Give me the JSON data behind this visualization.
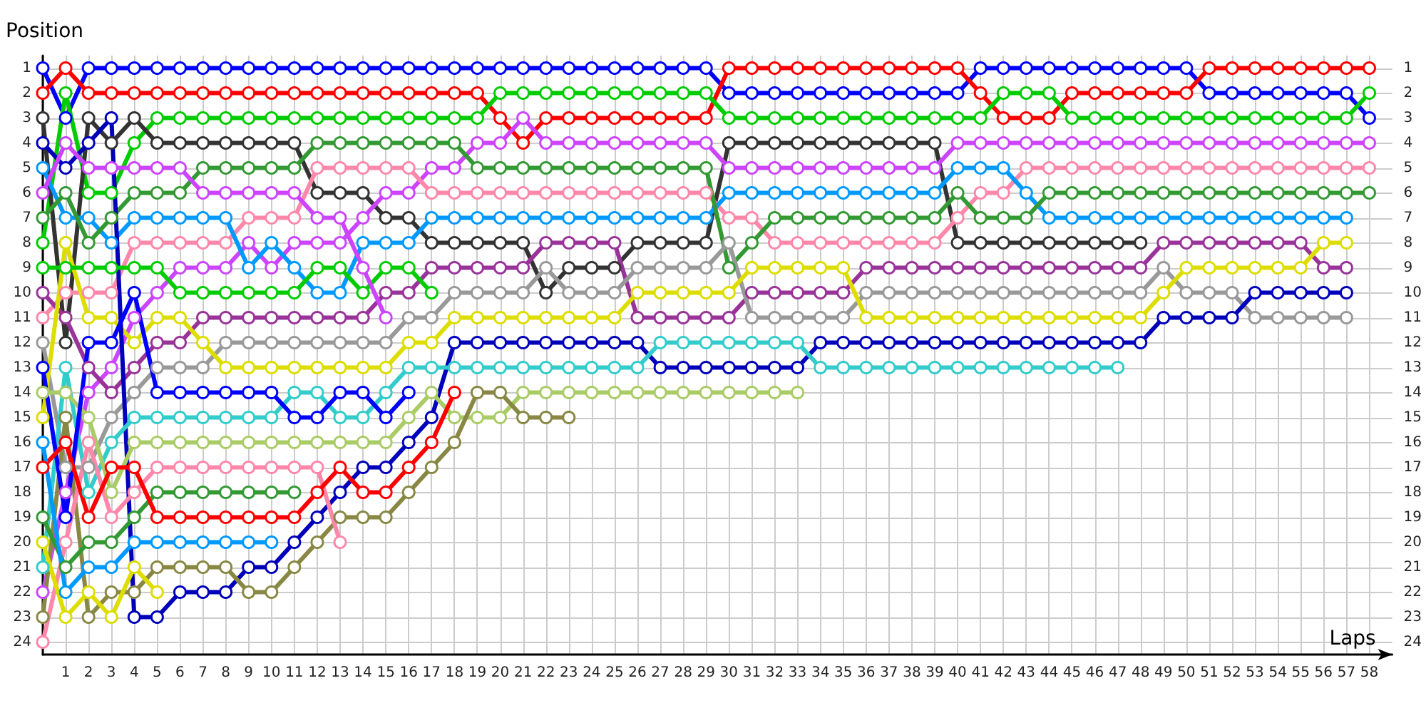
{
  "chart_data": {
    "type": "line",
    "xlabel": "Laps",
    "ylabel": "Position",
    "x": [
      0,
      1,
      2,
      3,
      4,
      5,
      6,
      7,
      8,
      9,
      10,
      11,
      12,
      13,
      14,
      15,
      16,
      17,
      18,
      19,
      20,
      21,
      22,
      23,
      24,
      25,
      26,
      27,
      28,
      29,
      30,
      31,
      32,
      33,
      34,
      35,
      36,
      37,
      38,
      39,
      40,
      41,
      42,
      43,
      44,
      45,
      46,
      47,
      48,
      49,
      50,
      51,
      52,
      53,
      54,
      55,
      56,
      57,
      58
    ],
    "xlim": [
      0,
      59
    ],
    "xticks": [
      {
        "value": 0,
        "label": null
      },
      1,
      2,
      3,
      4,
      5,
      6,
      7,
      8,
      9,
      10,
      11,
      12,
      13,
      14,
      15,
      16,
      17,
      18,
      19,
      20,
      21,
      22,
      23,
      24,
      25,
      26,
      27,
      28,
      29,
      30,
      31,
      32,
      33,
      34,
      35,
      36,
      37,
      38,
      39,
      40,
      41,
      42,
      43,
      44,
      45,
      46,
      47,
      48,
      49,
      50,
      51,
      52,
      53,
      54,
      55,
      56,
      57,
      58
    ],
    "ylim": [
      24.5,
      0.5
    ],
    "yticks": [
      1,
      2,
      3,
      4,
      5,
      6,
      7,
      8,
      9,
      10,
      11,
      12,
      13,
      14,
      15,
      16,
      17,
      18,
      19,
      20,
      21,
      22,
      23,
      24
    ],
    "y2lim": [
      24.5,
      0.5
    ],
    "y2ticks": [
      1,
      2,
      3,
      4,
      5,
      6,
      7,
      8,
      9,
      10,
      11,
      12,
      13,
      14,
      15,
      16,
      17,
      18,
      19,
      20,
      21,
      22,
      23,
      24
    ],
    "grid": true,
    "marker": "circle",
    "line_style": "solid",
    "series": [
      {
        "color": "#0000ff",
        "values": [
          1,
          3,
          1,
          1,
          1,
          1,
          1,
          1,
          1,
          1,
          1,
          1,
          1,
          1,
          1,
          1,
          1,
          1,
          1,
          1,
          1,
          1,
          1,
          1,
          1,
          1,
          1,
          1,
          1,
          1,
          2,
          2,
          2,
          2,
          2,
          2,
          2,
          2,
          2,
          2,
          2,
          1,
          1,
          1,
          1,
          1,
          1,
          1,
          1,
          1,
          1,
          2,
          2,
          2,
          2,
          2,
          2,
          2,
          3
        ]
      },
      {
        "color": "#ff0000",
        "values": [
          2,
          1,
          2,
          2,
          2,
          2,
          2,
          2,
          2,
          2,
          2,
          2,
          2,
          2,
          2,
          2,
          2,
          2,
          2,
          2,
          3,
          4,
          3,
          3,
          3,
          3,
          3,
          3,
          3,
          3,
          1,
          1,
          1,
          1,
          1,
          1,
          1,
          1,
          1,
          1,
          1,
          2,
          3,
          3,
          3,
          2,
          2,
          2,
          2,
          2,
          2,
          1,
          1,
          1,
          1,
          1,
          1,
          1,
          1
        ]
      },
      {
        "color": "#00cc00",
        "values": [
          8,
          2,
          6,
          6,
          4,
          3,
          3,
          3,
          3,
          3,
          3,
          3,
          3,
          3,
          3,
          3,
          3,
          3,
          3,
          3,
          2,
          2,
          2,
          2,
          2,
          2,
          2,
          2,
          2,
          2,
          3,
          3,
          3,
          3,
          3,
          3,
          3,
          3,
          3,
          3,
          3,
          3,
          2,
          2,
          2,
          3,
          3,
          3,
          3,
          3,
          3,
          3,
          3,
          3,
          3,
          3,
          3,
          3,
          2
        ]
      },
      {
        "color": "#333333",
        "values": [
          3,
          12,
          3,
          4,
          3,
          4,
          4,
          4,
          4,
          4,
          4,
          4,
          6,
          6,
          6,
          7,
          7,
          8,
          8,
          8,
          8,
          8,
          10,
          9,
          9,
          9,
          8,
          8,
          8,
          8,
          4,
          4,
          4,
          4,
          4,
          4,
          4,
          4,
          4,
          4,
          8,
          8,
          8,
          8,
          8,
          8,
          8,
          8,
          8,
          null,
          null,
          null,
          null,
          null,
          null,
          null,
          null,
          null,
          null
        ]
      },
      {
        "color": "#cc44ff",
        "values": [
          22,
          18,
          14,
          13,
          11,
          10,
          9,
          9,
          9,
          8,
          9,
          8,
          8,
          8,
          7,
          6,
          6,
          5,
          5,
          4,
          4,
          3,
          4,
          4,
          4,
          4,
          4,
          4,
          4,
          4,
          5,
          5,
          5,
          5,
          5,
          5,
          5,
          5,
          5,
          5,
          4,
          4,
          4,
          4,
          4,
          4,
          4,
          4,
          4,
          4,
          4,
          4,
          4,
          4,
          4,
          4,
          4,
          4,
          4
        ]
      },
      {
        "color": "#ff88aa",
        "values": [
          11,
          10,
          10,
          10,
          8,
          8,
          8,
          8,
          8,
          7,
          7,
          7,
          5,
          5,
          5,
          5,
          5,
          6,
          6,
          6,
          6,
          6,
          6,
          6,
          6,
          6,
          6,
          6,
          6,
          6,
          7,
          7,
          8,
          8,
          8,
          8,
          8,
          8,
          8,
          8,
          7,
          6,
          6,
          5,
          5,
          5,
          5,
          5,
          5,
          5,
          5,
          5,
          5,
          5,
          5,
          5,
          5,
          5,
          5
        ]
      },
      {
        "color": "#0099ff",
        "values": [
          5,
          7,
          7,
          8,
          7,
          7,
          7,
          7,
          7,
          9,
          8,
          9,
          10,
          10,
          8,
          8,
          8,
          7,
          7,
          7,
          7,
          7,
          7,
          7,
          7,
          7,
          7,
          7,
          7,
          7,
          6,
          6,
          6,
          6,
          6,
          6,
          6,
          6,
          6,
          6,
          5,
          5,
          5,
          6,
          7,
          7,
          7,
          7,
          7,
          7,
          7,
          7,
          7,
          7,
          7,
          7,
          7,
          7,
          null
        ]
      },
      {
        "color": "#339933",
        "values": [
          7,
          6,
          8,
          7,
          6,
          6,
          6,
          5,
          5,
          5,
          5,
          5,
          4,
          4,
          4,
          4,
          4,
          4,
          4,
          5,
          5,
          5,
          5,
          5,
          5,
          5,
          5,
          5,
          5,
          5,
          9,
          8,
          7,
          7,
          7,
          7,
          7,
          7,
          7,
          7,
          6,
          7,
          7,
          7,
          6,
          6,
          6,
          6,
          6,
          6,
          6,
          6,
          6,
          6,
          6,
          6,
          6,
          6,
          6
        ]
      },
      {
        "color": "#993399",
        "values": [
          10,
          11,
          13,
          14,
          13,
          12,
          12,
          11,
          11,
          11,
          11,
          11,
          11,
          11,
          11,
          10,
          10,
          9,
          9,
          9,
          9,
          9,
          8,
          8,
          8,
          8,
          11,
          11,
          11,
          11,
          11,
          10,
          10,
          10,
          10,
          10,
          9,
          9,
          9,
          9,
          9,
          9,
          9,
          9,
          9,
          9,
          9,
          9,
          9,
          8,
          8,
          8,
          8,
          8,
          8,
          8,
          9,
          9,
          null
        ]
      },
      {
        "color": "#999999",
        "values": [
          12,
          17,
          17,
          15,
          14,
          13,
          13,
          13,
          12,
          12,
          12,
          12,
          12,
          12,
          12,
          12,
          11,
          11,
          10,
          10,
          10,
          10,
          9,
          10,
          10,
          10,
          9,
          9,
          9,
          9,
          8,
          11,
          11,
          11,
          11,
          11,
          10,
          10,
          10,
          10,
          10,
          10,
          10,
          10,
          10,
          10,
          10,
          10,
          10,
          9,
          10,
          10,
          10,
          11,
          11,
          11,
          11,
          11,
          null
        ]
      },
      {
        "color": "#dddd00",
        "values": [
          15,
          8,
          11,
          11,
          12,
          11,
          11,
          12,
          13,
          13,
          13,
          13,
          13,
          13,
          13,
          13,
          12,
          12,
          11,
          11,
          11,
          11,
          11,
          11,
          11,
          11,
          10,
          10,
          10,
          10,
          10,
          9,
          9,
          9,
          9,
          9,
          11,
          11,
          11,
          11,
          11,
          11,
          11,
          11,
          11,
          11,
          11,
          11,
          11,
          10,
          9,
          9,
          9,
          9,
          9,
          9,
          8,
          8,
          null
        ]
      },
      {
        "color": "#0000bb",
        "values": [
          4,
          5,
          4,
          3,
          23,
          23,
          22,
          22,
          22,
          21,
          21,
          20,
          19,
          18,
          17,
          17,
          16,
          15,
          12,
          12,
          12,
          12,
          12,
          12,
          12,
          12,
          12,
          13,
          13,
          13,
          13,
          13,
          13,
          13,
          12,
          12,
          12,
          12,
          12,
          12,
          12,
          12,
          12,
          12,
          12,
          12,
          12,
          12,
          12,
          11,
          11,
          11,
          11,
          10,
          10,
          10,
          10,
          10,
          null
        ]
      },
      {
        "color": "#33cccc",
        "values": [
          21,
          13,
          18,
          16,
          15,
          15,
          15,
          15,
          15,
          15,
          15,
          14,
          14,
          15,
          15,
          14,
          13,
          13,
          13,
          13,
          13,
          13,
          13,
          13,
          13,
          13,
          13,
          12,
          12,
          12,
          12,
          12,
          12,
          12,
          13,
          13,
          13,
          13,
          13,
          13,
          13,
          13,
          13,
          13,
          13,
          13,
          13,
          13,
          null,
          null,
          null,
          null,
          null,
          null,
          null,
          null,
          null,
          null,
          null
        ]
      },
      {
        "color": "#aacc66",
        "values": [
          14,
          14,
          15,
          18,
          16,
          16,
          16,
          16,
          16,
          16,
          16,
          16,
          16,
          16,
          16,
          16,
          15,
          14,
          15,
          15,
          15,
          14,
          14,
          14,
          14,
          14,
          14,
          14,
          14,
          14,
          14,
          14,
          14,
          14,
          null,
          null,
          null,
          null,
          null,
          null,
          null,
          null,
          null,
          null,
          null,
          null,
          null,
          null,
          null,
          null,
          null,
          null,
          null,
          null,
          null,
          null,
          null,
          null,
          null
        ]
      },
      {
        "color": "#888844",
        "values": [
          23,
          15,
          23,
          22,
          22,
          21,
          21,
          21,
          21,
          22,
          22,
          21,
          20,
          19,
          19,
          19,
          18,
          17,
          16,
          14,
          14,
          15,
          15,
          15,
          null,
          null,
          null,
          null,
          null,
          null,
          null,
          null,
          null,
          null,
          null,
          null,
          null,
          null,
          null,
          null,
          null,
          null,
          null,
          null,
          null,
          null,
          null,
          null,
          null,
          null,
          null,
          null,
          null,
          null,
          null,
          null,
          null,
          null,
          null
        ]
      },
      {
        "color": "#00cc00",
        "values": [
          9,
          9,
          9,
          9,
          9,
          9,
          10,
          10,
          10,
          10,
          10,
          10,
          9,
          9,
          10,
          9,
          9,
          10,
          null,
          null,
          null,
          null,
          null,
          null,
          null,
          null,
          null,
          null,
          null,
          null,
          null,
          null,
          null,
          null,
          null,
          null,
          null,
          null,
          null,
          null,
          null,
          null,
          null,
          null,
          null,
          null,
          null,
          null,
          null,
          null,
          null,
          null,
          null,
          null,
          null,
          null,
          null,
          null,
          null
        ]
      },
      {
        "color": "#cc44ff",
        "values": [
          6,
          4,
          5,
          5,
          5,
          5,
          5,
          6,
          6,
          6,
          6,
          6,
          7,
          7,
          9,
          11,
          null,
          null,
          null,
          null,
          null,
          null,
          null,
          null,
          null,
          null,
          null,
          null,
          null,
          null,
          null,
          null,
          null,
          null,
          null,
          null,
          null,
          null,
          null,
          null,
          null,
          null,
          null,
          null,
          null,
          null,
          null,
          null,
          null,
          null,
          null,
          null,
          null,
          null,
          null,
          null,
          null,
          null,
          null
        ]
      },
      {
        "color": "#0000ff",
        "values": [
          13,
          19,
          12,
          12,
          10,
          14,
          14,
          14,
          14,
          14,
          14,
          15,
          15,
          14,
          14,
          15,
          14,
          null,
          null,
          null,
          null,
          null,
          null,
          null,
          null,
          null,
          null,
          null,
          null,
          null,
          null,
          null,
          null,
          null,
          null,
          null,
          null,
          null,
          null,
          null,
          null,
          null,
          null,
          null,
          null,
          null,
          null,
          null,
          null,
          null,
          null,
          null,
          null,
          null,
          null,
          null,
          null,
          null,
          null
        ]
      },
      {
        "color": "#ff88aa",
        "values": [
          24,
          20,
          16,
          19,
          18,
          17,
          17,
          17,
          17,
          17,
          17,
          17,
          17,
          20,
          null,
          null,
          null,
          null,
          null,
          null,
          null,
          null,
          null,
          null,
          null,
          null,
          null,
          null,
          null,
          null,
          null,
          null,
          null,
          null,
          null,
          null,
          null,
          null,
          null,
          null,
          null,
          null,
          null,
          null,
          null,
          null,
          null,
          null,
          null,
          null,
          null,
          null,
          null,
          null,
          null,
          null,
          null,
          null,
          null
        ]
      },
      {
        "color": "#339933",
        "values": [
          19,
          21,
          20,
          20,
          19,
          18,
          18,
          18,
          18,
          18,
          18,
          18,
          null,
          null,
          null,
          null,
          null,
          null,
          null,
          null,
          null,
          null,
          null,
          null,
          null,
          null,
          null,
          null,
          null,
          null,
          null,
          null,
          null,
          null,
          null,
          null,
          null,
          null,
          null,
          null,
          null,
          null,
          null,
          null,
          null,
          null,
          null,
          null,
          null,
          null,
          null,
          null,
          null,
          null,
          null,
          null,
          null,
          null,
          null
        ]
      },
      {
        "color": "#ff0000",
        "values": [
          17,
          16,
          19,
          17,
          17,
          19,
          19,
          19,
          19,
          19,
          19,
          19,
          18,
          17,
          18,
          18,
          17,
          16,
          14,
          null,
          null,
          null,
          null,
          null,
          null,
          null,
          null,
          null,
          null,
          null,
          null,
          null,
          null,
          null,
          null,
          null,
          null,
          null,
          null,
          null,
          null,
          null,
          null,
          null,
          null,
          null,
          null,
          null,
          null,
          null,
          null,
          null,
          null,
          null,
          null,
          null,
          null,
          null,
          null
        ]
      },
      {
        "color": "#0099ff",
        "values": [
          16,
          22,
          21,
          21,
          20,
          20,
          20,
          20,
          20,
          20,
          20,
          null,
          null,
          null,
          null,
          null,
          null,
          null,
          null,
          null,
          null,
          null,
          null,
          null,
          null,
          null,
          null,
          null,
          null,
          null,
          null,
          null,
          null,
          null,
          null,
          null,
          null,
          null,
          null,
          null,
          null,
          null,
          null,
          null,
          null,
          null,
          null,
          null,
          null,
          null,
          null,
          null,
          null,
          null,
          null,
          null,
          null,
          null,
          null
        ]
      },
      {
        "color": "#dddd00",
        "values": [
          20,
          23,
          22,
          23,
          21,
          22,
          null,
          null,
          null,
          null,
          null,
          null,
          null,
          null,
          null,
          null,
          null,
          null,
          null,
          null,
          null,
          null,
          null,
          null,
          null,
          null,
          null,
          null,
          null,
          null,
          null,
          null,
          null,
          null,
          null,
          null,
          null,
          null,
          null,
          null,
          null,
          null,
          null,
          null,
          null,
          null,
          null,
          null,
          null,
          null,
          null,
          null,
          null,
          null,
          null,
          null,
          null,
          null,
          null
        ]
      }
    ]
  }
}
